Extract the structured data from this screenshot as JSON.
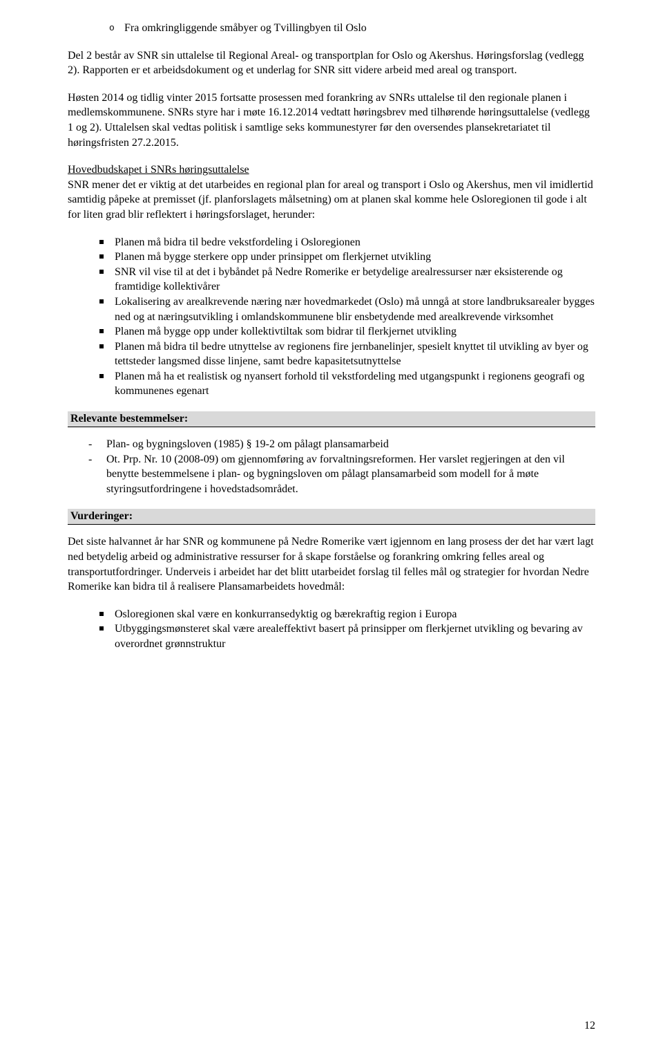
{
  "subBullet": {
    "item1": "Fra omkringliggende småbyer og Tvillingbyen til Oslo"
  },
  "para1": "Del 2 består av SNR sin uttalelse til Regional Areal- og transportplan for Oslo og Akershus. Høringsforslag (vedlegg 2). Rapporten er et arbeidsdokument og et underlag for SNR sitt videre arbeid med areal og transport.",
  "para2": "Høsten 2014 og tidlig vinter 2015 fortsatte prosessen med forankring av SNRs uttalelse til den regionale planen i medlemskommunene. SNRs styre har i møte 16.12.2014 vedtatt høringsbrev med tilhørende høringsuttalelse (vedlegg 1 og 2). Uttalelsen skal vedtas politisk i samtlige seks kommunestyrer før den oversendes plansekretariatet til høringsfristen 27.2.2015.",
  "hovedHeading": "Hovedbudskapet i SNRs høringsuttalelse",
  "para3": "SNR mener det er viktig at det utarbeides en regional plan for areal og transport i Oslo og Akershus, men vil imidlertid samtidig påpeke at premisset (jf. planforslagets målsetning) om at planen skal komme hele Osloregionen til gode i alt for liten grad blir reflektert i høringsforslaget, herunder:",
  "bullets1": {
    "b1": "Planen må bidra til bedre vekstfordeling i Osloregionen",
    "b2": "Planen må bygge sterkere opp under prinsippet om flerkjernet utvikling",
    "b3": "SNR vil vise til at det i bybåndet på Nedre Romerike er betydelige arealressurser nær eksisterende og framtidige kollektivårer",
    "b4": "Lokalisering av arealkrevende næring nær hovedmarkedet (Oslo) må unngå at store landbruksarealer bygges ned og at næringsutvikling i omlandskommunene blir ensbetydende med arealkrevende virksomhet",
    "b5": "Planen må bygge opp under kollektivtiltak som bidrar til flerkjernet utvikling",
    "b6": "Planen må bidra til bedre utnyttelse av regionens fire jernbanelinjer, spesielt knyttet til utvikling av byer og tettsteder langsmed disse linjene, samt bedre kapasitetsutnyttelse",
    "b7": "Planen må ha et realistisk og nyansert forhold til vekstfordeling med utgangspunkt i regionens geografi og kommunenes egenart"
  },
  "relevanteHeading": "Relevante bestemmelser:",
  "dashList": {
    "d1": "Plan- og bygningsloven (1985) § 19-2 om pålagt plansamarbeid",
    "d2": "Ot. Prp. Nr. 10 (2008-09) om gjennomføring av forvaltningsreformen. Her varslet regjeringen at den vil benytte bestemmelsene i plan- og bygningsloven om pålagt plansamarbeid som modell for å møte styringsutfordringene i hovedstadsområdet."
  },
  "vurderingerHeading": "Vurderinger:",
  "para4": "Det siste halvannet år har SNR og kommunene på Nedre Romerike vært igjennom en lang prosess der det har vært lagt ned betydelig arbeid og administrative ressurser for å skape forståelse og forankring omkring felles areal og transportutfordringer. Underveis i arbeidet har det blitt utarbeidet forslag til felles mål og strategier for hvordan Nedre Romerike kan bidra til å realisere Plansamarbeidets hovedmål:",
  "bullets2": {
    "b1": "Osloregionen skal være en konkurransedyktig og bærekraftig region i Europa",
    "b2": "Utbyggingsmønsteret skal være arealeffektivt basert på prinsipper om flerkjernet utvikling og bevaring av overordnet grønnstruktur"
  },
  "pageNumber": "12"
}
